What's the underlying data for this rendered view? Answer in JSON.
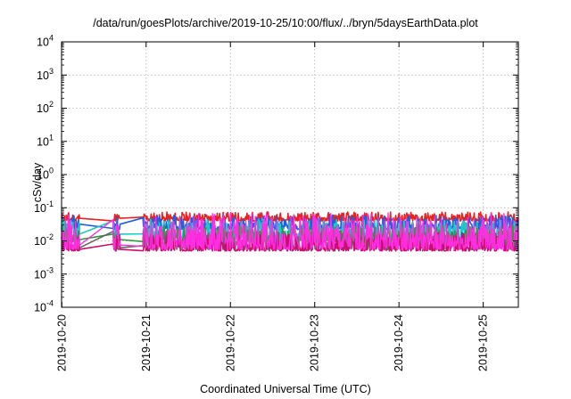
{
  "chart_data": {
    "type": "line",
    "title": "/data/run/goesPlots/archive/2019-10-25/10:00/flux/../bryn/5daysEarthData.plot",
    "xlabel": "Coordinated Universal Time (UTC)",
    "ylabel": "cSv/day",
    "yscale": "log",
    "ylim": [
      0.0001,
      10000
    ],
    "xlim": [
      "2019-10-19 23:55",
      "2019-10-25 10:00"
    ],
    "yticks": [
      {
        "value": 0.0001,
        "base": "10",
        "exp": "-4"
      },
      {
        "value": 0.001,
        "base": "10",
        "exp": "-3"
      },
      {
        "value": 0.01,
        "base": "10",
        "exp": "-2"
      },
      {
        "value": 0.1,
        "base": "10",
        "exp": "-1"
      },
      {
        "value": 1,
        "base": "10",
        "exp": "0"
      },
      {
        "value": 10,
        "base": "10",
        "exp": "1"
      },
      {
        "value": 100,
        "base": "10",
        "exp": "2"
      },
      {
        "value": 1000,
        "base": "10",
        "exp": "3"
      },
      {
        "value": 10000,
        "base": "10",
        "exp": "4"
      }
    ],
    "xticks": [
      "2019-10-20",
      "2019-10-21",
      "2019-10-22",
      "2019-10-23",
      "2019-10-24",
      "2019-10-25"
    ],
    "grid": true,
    "series": [
      {
        "color": "#e8221f",
        "base": 0.048,
        "high": 0.075,
        "low": 0.04,
        "seed": 11
      },
      {
        "color": "#1f5fe0",
        "base": 0.032,
        "high": 0.06,
        "low": 0.022,
        "seed": 23
      },
      {
        "color": "#20c8c8",
        "base": 0.016,
        "high": 0.045,
        "low": 0.012,
        "seed": 37
      },
      {
        "color": "#2a9a3a",
        "base": 0.011,
        "high": 0.03,
        "low": 0.009,
        "seed": 41
      },
      {
        "color": "#666666",
        "base": 0.0062,
        "high": 0.02,
        "low": 0.0055,
        "seed": 53
      },
      {
        "color": "#c8106e",
        "base": 0.0056,
        "high": 0.018,
        "low": 0.005,
        "seed": 67
      },
      {
        "color": "#ff2ee0",
        "base": 0.0075,
        "high": 0.07,
        "low": 0.0055,
        "seed": 79
      }
    ],
    "gaps": [
      {
        "start": "2019-10-20 05:00",
        "end": "2019-10-20 14:30",
        "level_factor": 1.0
      },
      {
        "start": "2019-10-20 16:30",
        "end": "2019-10-20 23:00",
        "level_factor": 1.0
      }
    ]
  }
}
